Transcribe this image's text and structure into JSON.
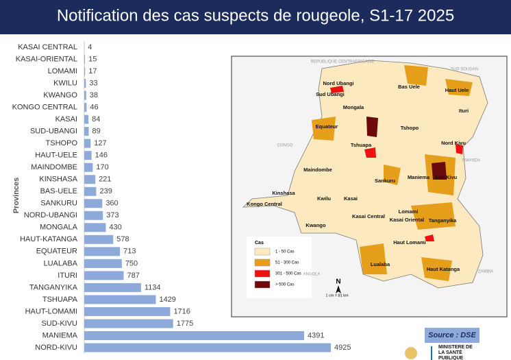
{
  "chart_data": {
    "type": "bar",
    "orientation": "horizontal",
    "title": "Notification des cas suspects de rougeole, S1-17 2025",
    "y_label": "Provinces",
    "color": "#8eaadb",
    "categories": [
      "KASAI CENTRAL",
      "KASAI-ORIENTAL",
      "LOMAMI",
      "KWILU",
      "KWANGO",
      "KONGO CENTRAL",
      "KASAI",
      "SUD-UBANGI",
      "TSHOPO",
      "HAUT-UELE",
      "MAINDOMBE",
      "KINSHASA",
      "BAS-UELE",
      "SANKURU",
      "NORD-UBANGI",
      "MONGALA",
      "HAUT-KATANGA",
      "EQUATEUR",
      "LUALABA",
      "ITURI",
      "TANGANYIKA",
      "TSHUAPA",
      "HAUT-LOMAMI",
      "SUD-KIVU",
      "MANIEMA",
      "NORD-KIVU"
    ],
    "values": [
      4,
      15,
      17,
      33,
      38,
      46,
      84,
      89,
      127,
      146,
      170,
      221,
      239,
      360,
      373,
      430,
      578,
      713,
      750,
      787,
      1134,
      1429,
      1716,
      1775,
      4391,
      4925
    ]
  },
  "map": {
    "labels": [
      "Nord Ubangi",
      "Sud Ubangi",
      "Bas Uele",
      "Haut Uele",
      "Ituri",
      "Mongala",
      "Equateur",
      "Tshopo",
      "Tshuapa",
      "Nord Kivu",
      "Maindombe",
      "Sankuru",
      "Maniema",
      "Sud Kivu",
      "Kinshasa",
      "Kwilu",
      "Kasai",
      "Kongo Central",
      "Kwango",
      "Kasai Central",
      "Lomami",
      "Kasai Oriental",
      "Tanganyika",
      "Haut Lomami",
      "Lualaba",
      "Haut Katanga"
    ],
    "countries": [
      "REPUBLIQUE CENTRAFRICAINE",
      "SUD SOUDAN",
      "CONGO",
      "RWANDA",
      "ANGOLA",
      "ZAMBIA"
    ],
    "legend_title": "Cas",
    "legend": [
      {
        "label": "1 - 50 Cas",
        "color": "#fde9c0"
      },
      {
        "label": "51 - 300 Cas",
        "color": "#e59f1a"
      },
      {
        "label": "301 - 500 Cas",
        "color": "#ee1111"
      },
      {
        "label": "> 500 Cas",
        "color": "#6b0a0a"
      }
    ],
    "north": "N",
    "scale": "1 cm = 81 km"
  },
  "source": "Source : DSE",
  "logo": "MINISTÈRE DE LA SANTÉ PUBLIQUE"
}
